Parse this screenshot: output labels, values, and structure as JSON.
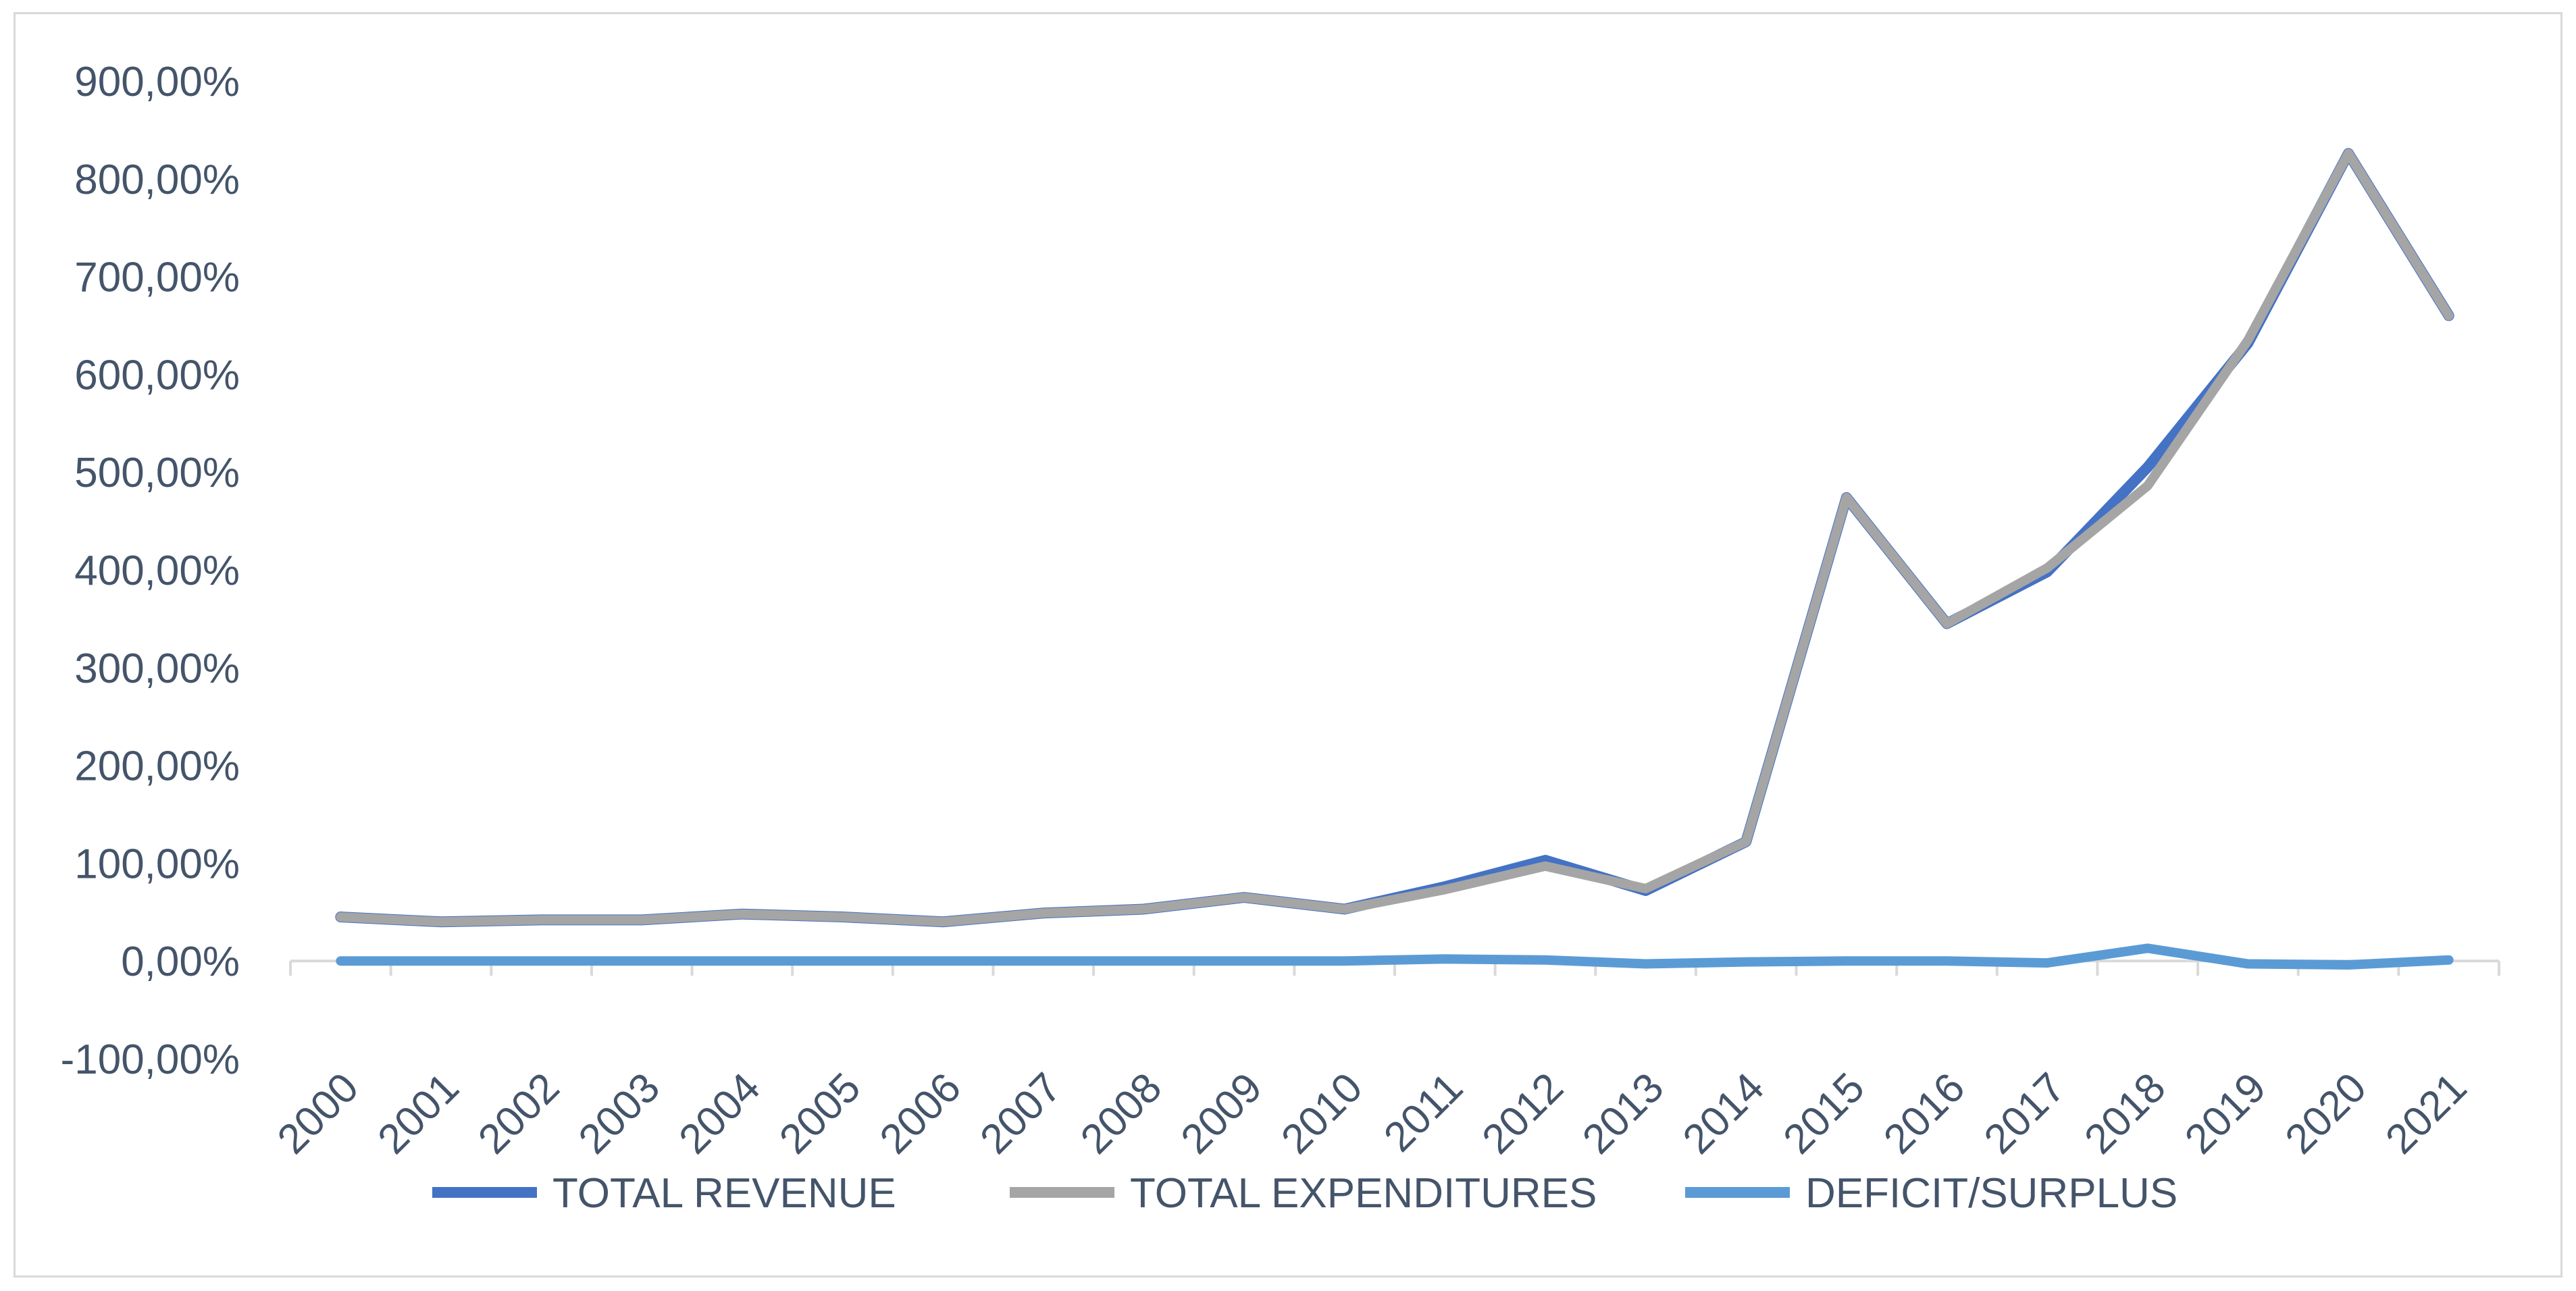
{
  "chart_data": {
    "type": "line",
    "title": "",
    "xlabel": "",
    "ylabel": "",
    "ylim": [
      -100,
      900
    ],
    "yticks": [
      -100,
      0,
      100,
      200,
      300,
      400,
      500,
      600,
      700,
      800,
      900
    ],
    "ytick_labels": [
      "-100,00%",
      "0,00%",
      "100,00%",
      "200,00%",
      "300,00%",
      "400,00%",
      "500,00%",
      "600,00%",
      "700,00%",
      "800,00%",
      "900,00%"
    ],
    "categories": [
      "2000",
      "2001",
      "2002",
      "2003",
      "2004",
      "2005",
      "2006",
      "2007",
      "2008",
      "2009",
      "2010",
      "2011",
      "2012",
      "2013",
      "2014",
      "2015",
      "2016",
      "2017",
      "2018",
      "2019",
      "2020",
      "2021"
    ],
    "series": [
      {
        "name": "TOTAL REVENUE",
        "color": "#4472c4",
        "values": [
          45,
          40,
          42,
          42,
          48,
          45,
          40,
          49,
          53,
          65,
          53,
          76,
          103,
          72,
          122,
          474,
          345,
          398,
          505,
          632,
          826,
          660
        ]
      },
      {
        "name": "TOTAL EXPENDITURES",
        "color": "#a5a5a5",
        "values": [
          45,
          40,
          42,
          42,
          48,
          45,
          40,
          49,
          53,
          65,
          53,
          73,
          97,
          74,
          122,
          474,
          345,
          402,
          486,
          635,
          826,
          660
        ]
      },
      {
        "name": "DEFICIT/SURPLUS",
        "color": "#5b9bd5",
        "values": [
          0,
          0,
          0,
          0,
          0,
          0,
          0,
          0,
          0,
          0,
          0,
          2,
          1,
          -3,
          -1,
          0,
          0,
          -2,
          13,
          -3,
          -4,
          1
        ]
      }
    ],
    "legend_position": "bottom",
    "grid": false
  }
}
